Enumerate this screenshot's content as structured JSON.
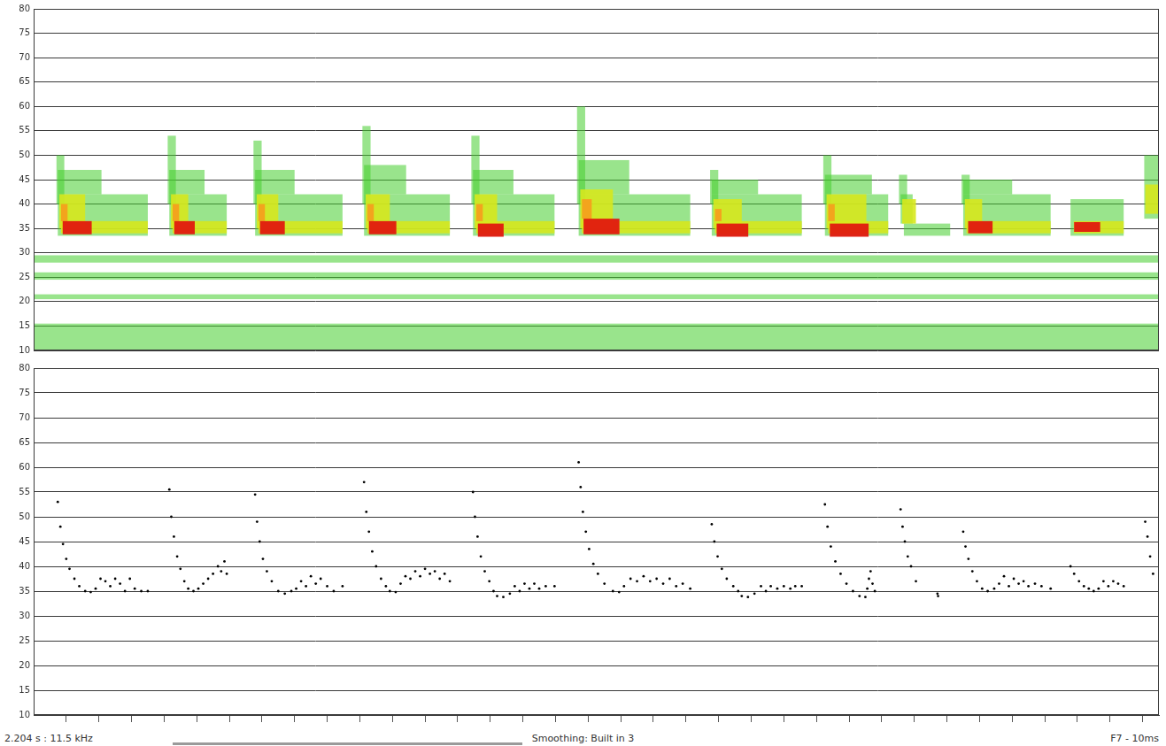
{
  "chart_data": [
    {
      "type": "heatmap",
      "xlim": [
        0,
        345
      ],
      "ylim": [
        10,
        80
      ],
      "yticks": [
        10,
        15,
        20,
        25,
        30,
        35,
        40,
        45,
        50,
        55,
        60,
        65,
        70,
        75,
        80
      ],
      "grid": true,
      "tick_labels": "y",
      "cells": [
        [
          0,
          345,
          10,
          15.5,
          1
        ],
        [
          0,
          345,
          20.5,
          21.5,
          1
        ],
        [
          0,
          345,
          24.5,
          26,
          1
        ],
        [
          0,
          345,
          28,
          29.5,
          1
        ],
        [
          7,
          9.4,
          40,
          50,
          1
        ],
        [
          7.4,
          35,
          33.5,
          42,
          1
        ],
        [
          7.4,
          20.8,
          42,
          47,
          1
        ],
        [
          8.4,
          35,
          34,
          36.5,
          2
        ],
        [
          7.9,
          15.8,
          35,
          42,
          2
        ],
        [
          8.9,
          17.8,
          33.8,
          36.5,
          4
        ],
        [
          8.4,
          10.4,
          36.5,
          40,
          3
        ],
        [
          41.1,
          43.6,
          40,
          54,
          1
        ],
        [
          41.6,
          59.2,
          33.5,
          42,
          1
        ],
        [
          41.6,
          52.4,
          42,
          47,
          1
        ],
        [
          42.6,
          59.2,
          34,
          36.5,
          2
        ],
        [
          42.1,
          47.4,
          35,
          42,
          2
        ],
        [
          43.1,
          49.4,
          33.8,
          36.5,
          4
        ],
        [
          42.6,
          44.6,
          36.5,
          40,
          3
        ],
        [
          67.4,
          69.9,
          40,
          53,
          1
        ],
        [
          67.9,
          94.7,
          33.5,
          42,
          1
        ],
        [
          67.9,
          80,
          42,
          47,
          1
        ],
        [
          68.9,
          94.7,
          34,
          36.5,
          2
        ],
        [
          68.4,
          75,
          35,
          42,
          2
        ],
        [
          69.4,
          77,
          33.8,
          36.5,
          4
        ],
        [
          68.9,
          70.9,
          36.5,
          40,
          3
        ],
        [
          100.8,
          103.3,
          40,
          56,
          1
        ],
        [
          101.3,
          127.6,
          33.5,
          42,
          1
        ],
        [
          101.3,
          114.2,
          42,
          48,
          1
        ],
        [
          102.3,
          127.6,
          34,
          36.5,
          2
        ],
        [
          101.8,
          109.2,
          35,
          42,
          2
        ],
        [
          102.8,
          111.2,
          33.8,
          36.5,
          4
        ],
        [
          102.3,
          104.3,
          36.5,
          40,
          3
        ],
        [
          134.2,
          136.7,
          40,
          54,
          1
        ],
        [
          134.7,
          159.7,
          33.5,
          42,
          1
        ],
        [
          134.7,
          147.1,
          42,
          47,
          1
        ],
        [
          135.7,
          159.7,
          34,
          36.5,
          2
        ],
        [
          135.2,
          142.1,
          35,
          42,
          2
        ],
        [
          136.2,
          144.1,
          33.3,
          36,
          4
        ],
        [
          135.7,
          137.7,
          36.5,
          40,
          3
        ],
        [
          166.6,
          169.1,
          40,
          60,
          1
        ],
        [
          167.1,
          201.3,
          33.5,
          42,
          1
        ],
        [
          167.1,
          182.6,
          42,
          49,
          1
        ],
        [
          168.1,
          201.3,
          34,
          36.5,
          2
        ],
        [
          167.6,
          177.6,
          35,
          43,
          2
        ],
        [
          168.6,
          179.6,
          33.8,
          37,
          4
        ],
        [
          168.1,
          171.1,
          37,
          41,
          3
        ],
        [
          207.4,
          209.9,
          40,
          47,
          1
        ],
        [
          207.9,
          235.5,
          33.5,
          42,
          1
        ],
        [
          207.9,
          222.1,
          42,
          45,
          1
        ],
        [
          208.9,
          235.5,
          34,
          36.5,
          2
        ],
        [
          208.4,
          217.1,
          35,
          41,
          2
        ],
        [
          209.4,
          219.1,
          33.3,
          36,
          4
        ],
        [
          208.9,
          210.9,
          36.5,
          39,
          3
        ],
        [
          242.1,
          244.6,
          40,
          50,
          1
        ],
        [
          242.6,
          262,
          33.5,
          42,
          1
        ],
        [
          242.6,
          257,
          42,
          46,
          1
        ],
        [
          243.6,
          262,
          34,
          36.5,
          2
        ],
        [
          243.1,
          255.3,
          35,
          42,
          2
        ],
        [
          244.1,
          256,
          33.3,
          36,
          4
        ],
        [
          243.6,
          245.6,
          36.5,
          40,
          3
        ],
        [
          265.3,
          267.8,
          40,
          46,
          1
        ],
        [
          265.8,
          269.5,
          36,
          42,
          1
        ],
        [
          266.8,
          281,
          33.5,
          36,
          1
        ],
        [
          266.3,
          270.5,
          36,
          41,
          2
        ],
        [
          284.5,
          287,
          40,
          46,
          1
        ],
        [
          285,
          311.8,
          33.5,
          42,
          1
        ],
        [
          285,
          300,
          42,
          45,
          1
        ],
        [
          286,
          311.8,
          34,
          36.5,
          2
        ],
        [
          285.5,
          290.8,
          35,
          41,
          2
        ],
        [
          286.5,
          294,
          34,
          36.5,
          4
        ],
        [
          317.9,
          334.2,
          33.5,
          41,
          1
        ],
        [
          318.9,
          334.2,
          34,
          36.5,
          2
        ],
        [
          319,
          327,
          34.3,
          36.3,
          4
        ],
        [
          340.5,
          345,
          37,
          50,
          1
        ],
        [
          340.8,
          345,
          38,
          44,
          2
        ]
      ]
    },
    {
      "type": "scatter",
      "xlim": [
        0,
        345
      ],
      "ylim": [
        10,
        80
      ],
      "xticks": [
        10,
        20,
        30,
        40,
        50,
        60,
        70,
        80,
        90,
        100,
        110,
        120,
        130,
        140,
        150,
        160,
        170,
        180,
        190,
        200,
        210,
        220,
        230,
        240,
        250,
        260,
        270,
        280,
        290,
        300,
        310,
        320,
        330,
        340
      ],
      "yticks": [
        10,
        15,
        20,
        25,
        30,
        35,
        40,
        45,
        50,
        55,
        60,
        65,
        70,
        75,
        80
      ],
      "grid": true,
      "tick_labels": "y",
      "color": "#000000",
      "marker": "point",
      "annotations": [
        "2.204 s : 11.5 kHz",
        "Smoothing: Built in 3",
        "F7 - 10ms"
      ],
      "x": [
        7.4,
        8.2,
        9,
        10,
        11,
        12.5,
        14,
        15.8,
        17.5,
        19,
        20.5,
        22,
        23.5,
        25,
        26.5,
        28,
        29.5,
        31,
        33,
        35,
        41.6,
        42.2,
        43,
        44,
        45,
        46.2,
        47.4,
        49,
        50.5,
        52,
        53.5,
        55,
        56.5,
        57.5,
        58.5,
        59.2,
        67.9,
        68.5,
        69.3,
        70.3,
        71.5,
        73,
        75,
        77,
        79,
        80.5,
        82,
        83.5,
        85,
        86.5,
        88,
        90,
        92,
        94.7,
        101.3,
        102,
        102.8,
        103.8,
        105,
        106.5,
        108,
        109.2,
        111,
        112.5,
        114,
        115.5,
        117,
        118.5,
        120,
        121.5,
        123,
        124.5,
        126,
        127.6,
        134.7,
        135.3,
        136.1,
        137.1,
        138.3,
        139.7,
        141,
        142.1,
        144,
        146,
        147.5,
        149,
        150.5,
        152,
        153.5,
        155,
        157,
        159.7,
        167.1,
        167.7,
        168.4,
        169.3,
        170.3,
        171.6,
        173,
        175,
        177.6,
        179.5,
        181,
        183,
        185,
        187,
        189,
        191,
        193,
        195,
        197,
        199,
        201.3,
        207.9,
        208.7,
        209.7,
        211,
        212.5,
        214.5,
        216,
        217.1,
        219,
        221,
        223,
        224.5,
        226,
        228,
        230,
        232,
        233.5,
        235.5,
        242.6,
        243.4,
        244.4,
        245.8,
        247.4,
        249.2,
        251.2,
        253.2,
        255,
        255.6,
        256.1,
        256.6,
        257.2,
        257.9,
        265.8,
        266.4,
        267.1,
        268,
        269,
        270.5,
        277.1,
        277.3,
        285,
        285.7,
        286.6,
        287.8,
        289.2,
        290.8,
        292.5,
        294.5,
        296,
        297.5,
        299,
        300.5,
        302,
        303.5,
        305,
        307,
        309,
        311.8,
        317.9,
        319,
        320.5,
        322,
        323.5,
        325,
        326.5,
        328,
        329.5,
        331,
        332.5,
        334.2,
        340.8,
        341.5,
        342.3,
        343.2
      ],
      "values": [
        53,
        48,
        44.5,
        41.5,
        39.5,
        37.5,
        36,
        35,
        34.8,
        35.5,
        37.5,
        37,
        36,
        37.5,
        36.5,
        35,
        37.5,
        35.5,
        35,
        35,
        55.5,
        50,
        46,
        42,
        39.5,
        37,
        35.5,
        35,
        35.5,
        36.5,
        37.5,
        38.5,
        40,
        39,
        41,
        38.5,
        54.5,
        49,
        45,
        41.5,
        39,
        37,
        35,
        34.5,
        35,
        35.5,
        37,
        36,
        38,
        36.5,
        37.5,
        36,
        35,
        36,
        57,
        51,
        47,
        43,
        40,
        37.5,
        36,
        35,
        34.8,
        36.5,
        38,
        37.5,
        39,
        38,
        39.5,
        38.5,
        39,
        37.5,
        38.5,
        37,
        55,
        50,
        46,
        42,
        39,
        37,
        35,
        34,
        33.8,
        34.5,
        36,
        35,
        36.5,
        35.5,
        36.5,
        35.5,
        36,
        36,
        61,
        56,
        51,
        47,
        43.5,
        40.5,
        38.5,
        36.5,
        35,
        34.8,
        36,
        37.5,
        37,
        38,
        37,
        37.5,
        36.5,
        37.5,
        36,
        36.5,
        35.5,
        48.5,
        45,
        42,
        39.5,
        37.5,
        36,
        35,
        34,
        33.8,
        34.5,
        36,
        35,
        36,
        35.5,
        36,
        35.5,
        36,
        36,
        52.5,
        48,
        44,
        41,
        38.5,
        36.5,
        35,
        34,
        33.8,
        35.5,
        37.5,
        39,
        36.5,
        35,
        51.5,
        48,
        45,
        42,
        40,
        37,
        34.5,
        34,
        47,
        44,
        41.5,
        39,
        37,
        35.5,
        35,
        35.5,
        36.5,
        38,
        36,
        37.5,
        36.5,
        37,
        36,
        36.5,
        36,
        35.5,
        40,
        38.5,
        37,
        36,
        35.5,
        35,
        35.5,
        37,
        36,
        37,
        36.5,
        36,
        49,
        46,
        42,
        38.5
      ]
    }
  ]
}
